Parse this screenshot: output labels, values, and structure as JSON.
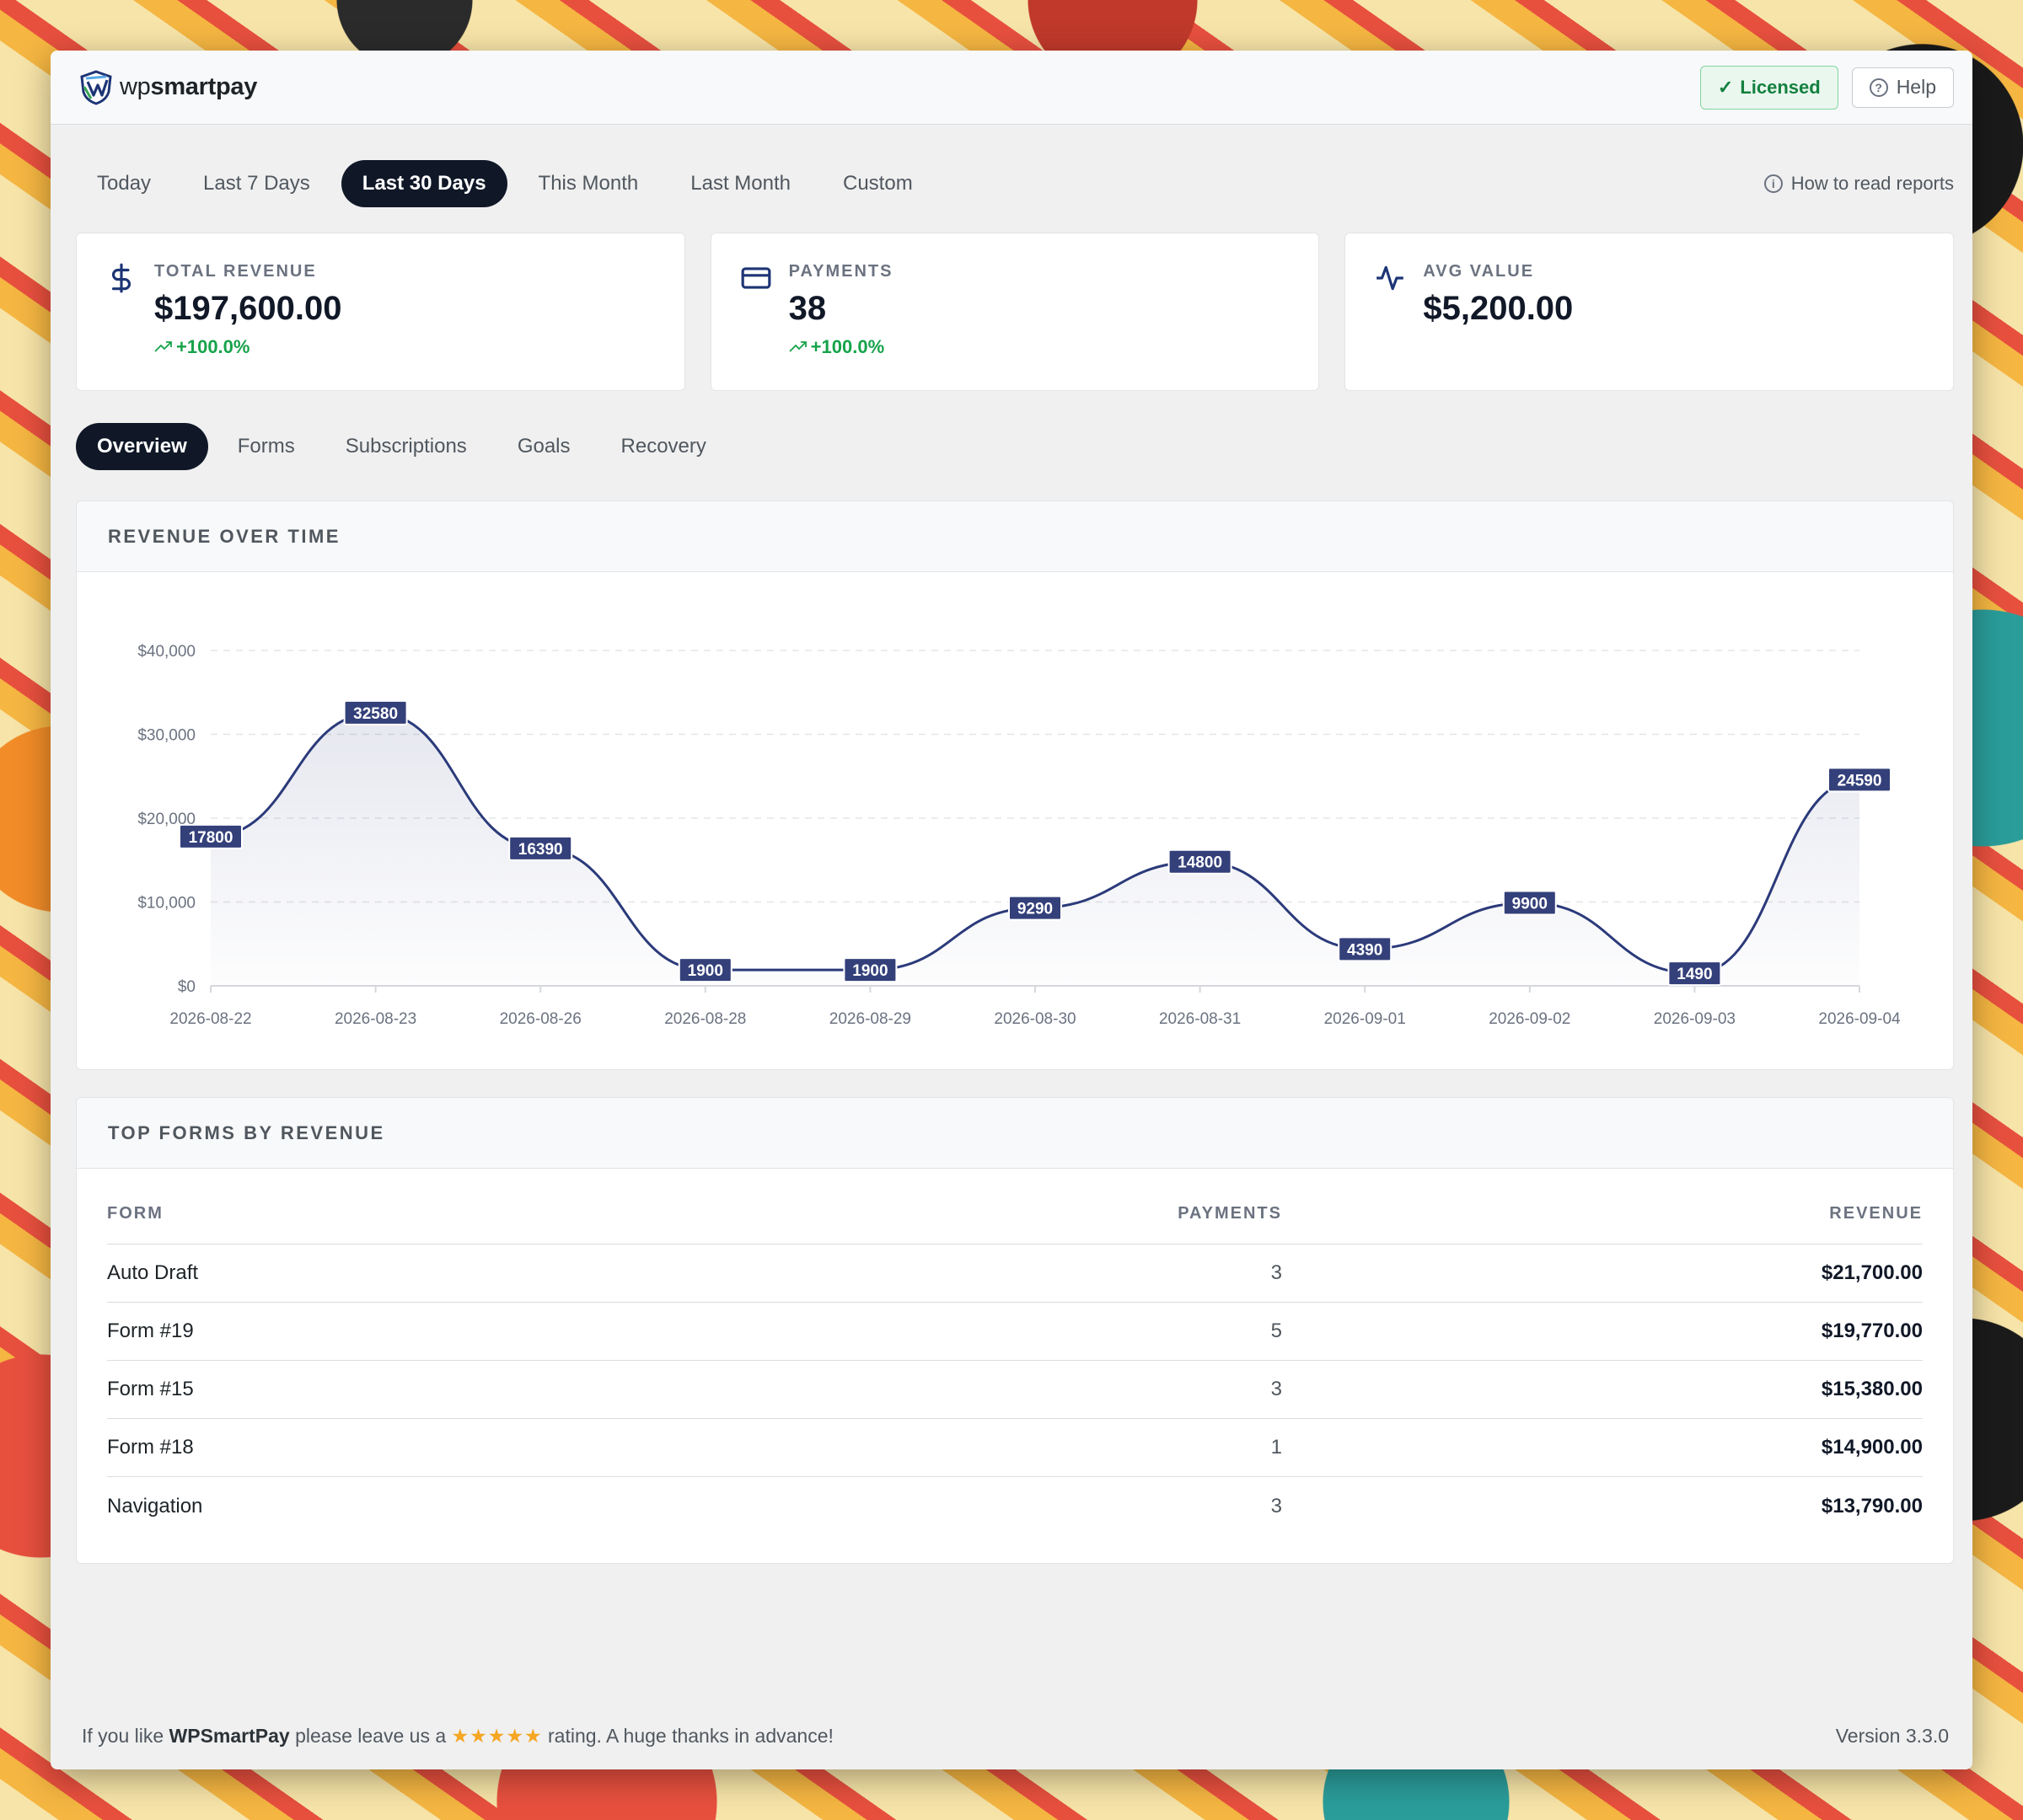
{
  "brand": {
    "prefix": "wp",
    "name": "smartpay"
  },
  "header": {
    "licensed_label": "Licensed",
    "help_label": "Help"
  },
  "date_ranges": [
    {
      "label": "Today",
      "active": false
    },
    {
      "label": "Last 7 Days",
      "active": false
    },
    {
      "label": "Last 30 Days",
      "active": true
    },
    {
      "label": "This Month",
      "active": false
    },
    {
      "label": "Last Month",
      "active": false
    },
    {
      "label": "Custom",
      "active": false
    }
  ],
  "how_to_read": "How to read reports",
  "stats": [
    {
      "label": "TOTAL REVENUE",
      "value": "$197,600.00",
      "delta": "+100.0%",
      "icon": "dollar-icon"
    },
    {
      "label": "PAYMENTS",
      "value": "38",
      "delta": "+100.0%",
      "icon": "credit-card-icon"
    },
    {
      "label": "AVG VALUE",
      "value": "$5,200.00",
      "delta": "",
      "icon": "activity-icon"
    }
  ],
  "tabs": [
    {
      "label": "Overview",
      "active": true
    },
    {
      "label": "Forms",
      "active": false
    },
    {
      "label": "Subscriptions",
      "active": false
    },
    {
      "label": "Goals",
      "active": false
    },
    {
      "label": "Recovery",
      "active": false
    }
  ],
  "revenue_panel": {
    "title": "REVENUE OVER TIME"
  },
  "chart_data": {
    "type": "area",
    "title": "REVENUE OVER TIME",
    "x": [
      "2026-08-22",
      "2026-08-23",
      "2026-08-26",
      "2026-08-28",
      "2026-08-29",
      "2026-08-30",
      "2026-08-31",
      "2026-09-01",
      "2026-09-02",
      "2026-09-03",
      "2026-09-04"
    ],
    "series": [
      {
        "values": [
          17800,
          32580,
          16390,
          1900,
          1900,
          9290,
          14800,
          4390,
          9900,
          1490,
          24590
        ]
      }
    ],
    "y_ticks": [
      "$0",
      "$10,000",
      "$20,000",
      "$30,000",
      "$40,000"
    ],
    "ylim": [
      0,
      40000
    ],
    "grid": true,
    "data_labels": true,
    "line_color": "#2b3a7a",
    "label_color": "#34407a"
  },
  "forms_panel": {
    "title": "TOP FORMS BY REVENUE",
    "columns": {
      "form": "FORM",
      "payments": "PAYMENTS",
      "revenue": "REVENUE"
    },
    "rows": [
      {
        "form": "Auto Draft",
        "payments": "3",
        "revenue": "$21,700.00"
      },
      {
        "form": "Form #19",
        "payments": "5",
        "revenue": "$19,770.00"
      },
      {
        "form": "Form #15",
        "payments": "3",
        "revenue": "$15,380.00"
      },
      {
        "form": "Form #18",
        "payments": "1",
        "revenue": "$14,900.00"
      },
      {
        "form": "Navigation",
        "payments": "3",
        "revenue": "$13,790.00"
      }
    ]
  },
  "footer": {
    "pre": "If you like ",
    "brand": "WPSmartPay",
    "mid": " please leave us a ",
    "stars": "★★★★★",
    "post": " rating. A huge thanks in advance!",
    "version": "Version 3.3.0"
  }
}
